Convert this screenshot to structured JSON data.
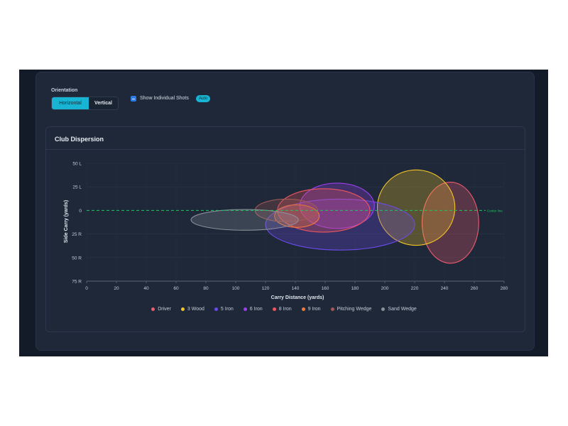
{
  "controls": {
    "orientation_label": "Orientation",
    "orientation_options": [
      "Horizontal",
      "Vertical"
    ],
    "orientation_selected": "Horizontal",
    "show_shots_label": "Show Individual Shots",
    "show_shots_checked": true,
    "auto_badge": "Auto"
  },
  "card": {
    "title": "Club Dispersion"
  },
  "chart_data": {
    "type": "scatter",
    "title": "Club Dispersion",
    "xlabel": "Carry Distance (yards)",
    "ylabel": "Side Carry (yards)",
    "xlim": [
      0,
      280
    ],
    "ylim": [
      -75,
      50
    ],
    "x_ticks": [
      0,
      20,
      40,
      60,
      80,
      100,
      120,
      140,
      160,
      180,
      200,
      220,
      240,
      260,
      280
    ],
    "x_tick_labels": [
      "0",
      "20",
      "40",
      "60",
      "80",
      "100",
      "120",
      "140",
      "160",
      "180",
      "200",
      "220",
      "240",
      "260",
      "280"
    ],
    "y_ticks": [
      50,
      25,
      0,
      -25,
      -50,
      -75
    ],
    "y_tick_labels": [
      "50 L",
      "25 L",
      "0",
      "25 R",
      "50 R",
      "75 R"
    ],
    "grid": true,
    "legend_position": "bottom",
    "center_line": {
      "label": "Center line",
      "y": 0,
      "color": "#22c55e"
    },
    "series": [
      {
        "name": "Driver",
        "color": "#f05a6e",
        "center_x": 244,
        "center_y": -13,
        "radius_x": 19,
        "radius_y": 43
      },
      {
        "name": "3 Wood",
        "color": "#f2c428",
        "center_x": 221,
        "center_y": 3,
        "radius_x": 26,
        "radius_y": 40
      },
      {
        "name": "5 Iron",
        "color": "#6b4be6",
        "center_x": 170,
        "center_y": -15,
        "radius_x": 50,
        "radius_y": 27
      },
      {
        "name": "6 Iron",
        "color": "#9b3ff0",
        "center_x": 168,
        "center_y": 5,
        "radius_x": 25,
        "radius_y": 24
      },
      {
        "name": "8 Iron",
        "color": "#f0565f",
        "center_x": 159,
        "center_y": 0,
        "radius_x": 31,
        "radius_y": 23
      },
      {
        "name": "9 Iron",
        "color": "#f57a3c",
        "center_x": 141,
        "center_y": -6,
        "radius_x": 15,
        "radius_y": 12
      },
      {
        "name": "Pitching Wedge",
        "color": "#a05a55",
        "center_x": 134,
        "center_y": 0,
        "radius_x": 21,
        "radius_y": 12
      },
      {
        "name": "Sand Wedge",
        "color": "#8a8f99",
        "center_x": 106,
        "center_y": -10,
        "radius_x": 36,
        "radius_y": 11
      }
    ]
  }
}
